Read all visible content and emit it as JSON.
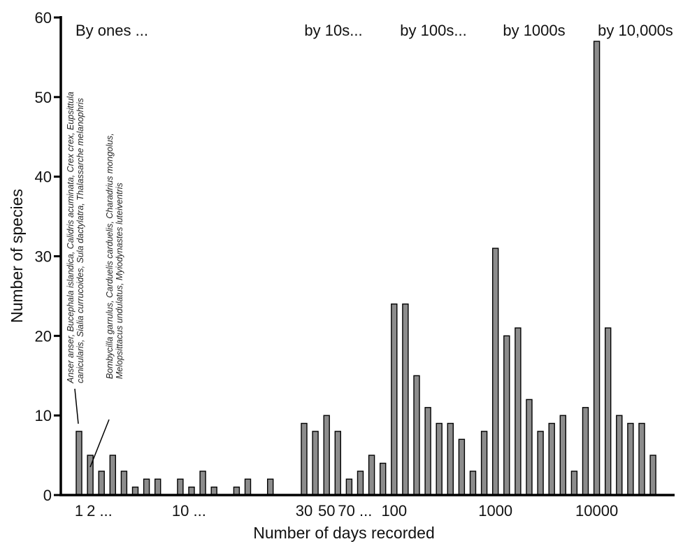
{
  "chart_data": {
    "type": "bar",
    "xlabel": "Number of days recorded",
    "ylabel": "Number of species",
    "ylim": [
      0,
      60
    ],
    "yticks": [
      0,
      10,
      20,
      30,
      40,
      50,
      60
    ],
    "grid": false,
    "bar_color": "#8c8c8c",
    "bar_edge_color": "#000000",
    "x_tick_labels": [
      "1",
      "2 ...",
      "10 ...",
      "30",
      "50",
      "70 ...",
      "100",
      "1000",
      "10000"
    ],
    "group_labels": [
      "By ones ...",
      "by 10s...",
      "by 100s...",
      "by 1000s",
      "by 10,000s"
    ],
    "annotations": [
      {
        "lines": [
          "Anser anser, Bucephala islandica, Calidris acuminata, Crex crex, Eupsittula",
          "canicularis, Sialia currucoides, Sula dactylatra, Thalassarche melanophris"
        ]
      },
      {
        "lines": [
          "Bombycilla garrulus, Carduelis carduelis, Charadrius mongolus,",
          "Melopsittacus undulatus, Myiodynastes luteiventris"
        ]
      }
    ],
    "values": [
      8,
      5,
      3,
      5,
      3,
      1,
      2,
      2,
      0,
      2,
      1,
      3,
      1,
      0,
      1,
      2,
      0,
      2,
      0,
      0,
      9,
      8,
      10,
      8,
      2,
      3,
      5,
      4,
      24,
      24,
      15,
      11,
      9,
      9,
      7,
      3,
      8,
      31,
      20,
      21,
      12,
      8,
      9,
      10,
      3,
      11,
      57,
      21,
      10,
      9,
      9,
      5
    ]
  }
}
